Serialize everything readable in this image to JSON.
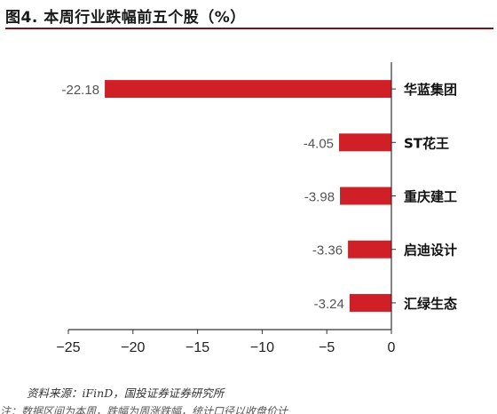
{
  "figure": {
    "title": "图4. 本周行业跌幅前五个股（%）",
    "source": "资料来源：iFinD，国投证券证券研究所",
    "cut_text": "注：数据区间为本周，跌幅为周涨跌幅，统计口径以收盘价计"
  },
  "colors": {
    "bar": "#d01f26",
    "axis": "#333333",
    "title_rule": "#7a1319"
  },
  "chart_data": {
    "type": "bar",
    "orientation": "horizontal",
    "categories": [
      "华蓝集团",
      "ST花王",
      "重庆建工",
      "启迪设计",
      "汇绿生态"
    ],
    "values": [
      -22.18,
      -4.05,
      -3.98,
      -3.36,
      -3.24
    ],
    "data_labels": [
      "-22.18",
      "-4.05",
      "-3.98",
      "-3.36",
      "-3.24"
    ],
    "xlim": [
      -25,
      0
    ],
    "xticks": [
      -25,
      -20,
      -15,
      -10,
      -5,
      0
    ],
    "xtick_labels": [
      "−25",
      "−20",
      "−15",
      "−10",
      "−5",
      "0"
    ],
    "grid": false,
    "legend": false,
    "title": "",
    "xlabel": "",
    "ylabel": ""
  }
}
